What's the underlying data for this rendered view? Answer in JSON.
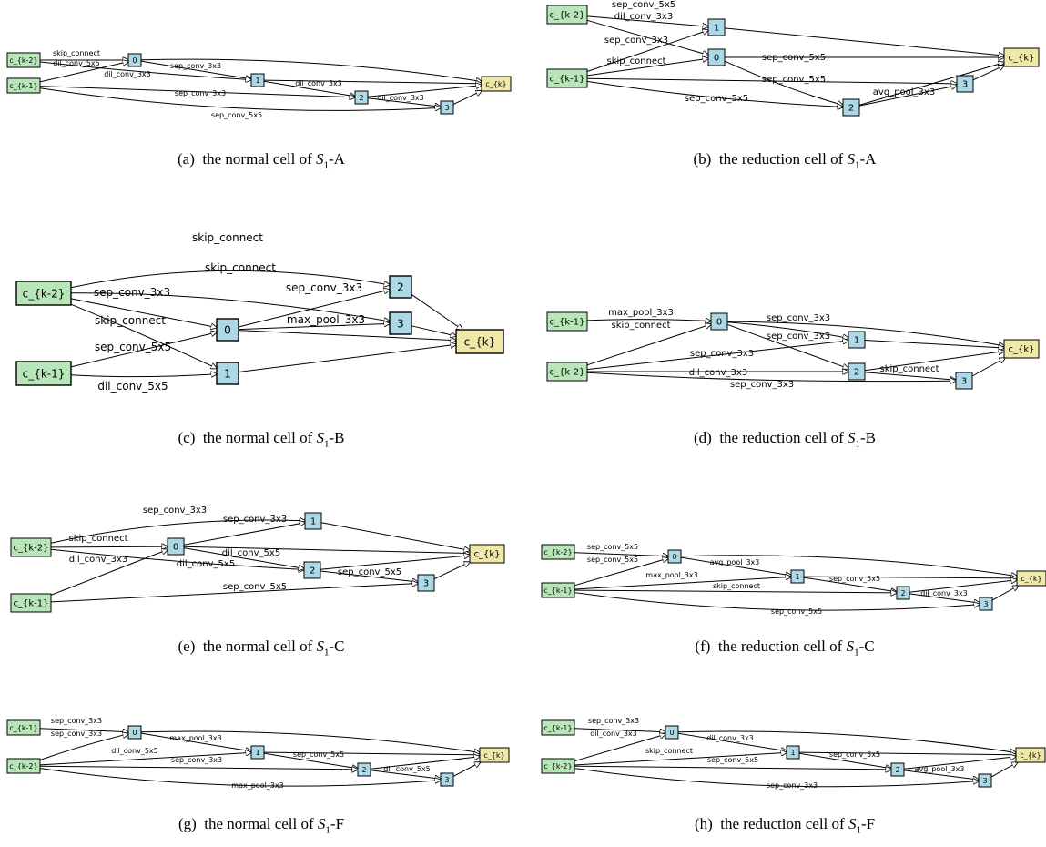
{
  "colors": {
    "input_node": "#b8e6b8",
    "intermediate_node": "#add8e6",
    "output_node": "#f0e8a8",
    "edge": "#000000"
  },
  "panels": [
    {
      "id": "a",
      "caption": {
        "label": "(a)",
        "text": "the normal cell of",
        "space": "S",
        "sub": "1",
        "suffix": "-A"
      },
      "nodes": [
        {
          "id": "c_{k-2}",
          "kind": "input"
        },
        {
          "id": "c_{k-1}",
          "kind": "input"
        },
        {
          "id": "0",
          "kind": "intermediate"
        },
        {
          "id": "1",
          "kind": "intermediate"
        },
        {
          "id": "2",
          "kind": "intermediate"
        },
        {
          "id": "3",
          "kind": "intermediate"
        },
        {
          "id": "c_{k}",
          "kind": "output"
        }
      ],
      "edges": [
        {
          "from": "c_{k-2}",
          "to": "0",
          "op": "skip_connect"
        },
        {
          "from": "c_{k-1}",
          "to": "0",
          "op": "dil_conv_5x5"
        },
        {
          "from": "0",
          "to": "1",
          "op": "sep_conv_3x3"
        },
        {
          "from": "c_{k-2}",
          "to": "1",
          "op": "dil_conv_3x3"
        },
        {
          "from": "1",
          "to": "2",
          "op": "dil_conv_3x3"
        },
        {
          "from": "c_{k-1}",
          "to": "2",
          "op": "sep_conv_3x3"
        },
        {
          "from": "2",
          "to": "3",
          "op": "dil_conv_3x3"
        },
        {
          "from": "c_{k-1}",
          "to": "3",
          "op": "sep_conv_5x5"
        },
        {
          "from": "0",
          "to": "c_{k}",
          "op": ""
        },
        {
          "from": "1",
          "to": "c_{k}",
          "op": ""
        },
        {
          "from": "2",
          "to": "c_{k}",
          "op": ""
        },
        {
          "from": "3",
          "to": "c_{k}",
          "op": ""
        }
      ]
    },
    {
      "id": "b",
      "caption": {
        "label": "(b)",
        "text": "the reduction cell of",
        "space": "S",
        "sub": "1",
        "suffix": "-A"
      },
      "nodes": [
        {
          "id": "c_{k-2}",
          "kind": "input"
        },
        {
          "id": "c_{k-1}",
          "kind": "input"
        },
        {
          "id": "0",
          "kind": "intermediate"
        },
        {
          "id": "1",
          "kind": "intermediate"
        },
        {
          "id": "2",
          "kind": "intermediate"
        },
        {
          "id": "3",
          "kind": "intermediate"
        },
        {
          "id": "c_{k}",
          "kind": "output"
        }
      ],
      "edges": [
        {
          "from": "c_{k-2}",
          "to": "1",
          "op": "sep_conv_5x5"
        },
        {
          "from": "c_{k-2}",
          "to": "0",
          "op": "dil_conv_3x3"
        },
        {
          "from": "c_{k-1}",
          "to": "1",
          "op": "sep_conv_3x3"
        },
        {
          "from": "c_{k-1}",
          "to": "0",
          "op": "skip_connect"
        },
        {
          "from": "0",
          "to": "2",
          "op": "sep_conv_5x5"
        },
        {
          "from": "c_{k-1}",
          "to": "3",
          "op": "sep_conv_5x5"
        },
        {
          "from": "c_{k-1}",
          "to": "2",
          "op": "sep_conv_5x5"
        },
        {
          "from": "2",
          "to": "3",
          "op": "avg_pool_3x3"
        },
        {
          "from": "0",
          "to": "c_{k}",
          "op": ""
        },
        {
          "from": "1",
          "to": "c_{k}",
          "op": ""
        },
        {
          "from": "2",
          "to": "c_{k}",
          "op": ""
        },
        {
          "from": "3",
          "to": "c_{k}",
          "op": ""
        }
      ]
    },
    {
      "id": "c",
      "caption": {
        "label": "(c)",
        "text": "the normal cell of",
        "space": "S",
        "sub": "1",
        "suffix": "-B"
      },
      "nodes": [
        {
          "id": "c_{k-2}",
          "kind": "input"
        },
        {
          "id": "c_{k-1}",
          "kind": "input"
        },
        {
          "id": "0",
          "kind": "intermediate"
        },
        {
          "id": "1",
          "kind": "intermediate"
        },
        {
          "id": "2",
          "kind": "intermediate"
        },
        {
          "id": "3",
          "kind": "intermediate"
        },
        {
          "id": "c_{k}",
          "kind": "output"
        }
      ],
      "edges": [
        {
          "from": "c_{k-2}",
          "to": "2",
          "op": "skip_connect"
        },
        {
          "from": "c_{k-2}",
          "to": "3",
          "op": "skip_connect"
        },
        {
          "from": "c_{k-2}",
          "to": "0",
          "op": "sep_conv_3x3"
        },
        {
          "from": "c_{k-2}",
          "to": "1",
          "op": "skip_connect"
        },
        {
          "from": "0",
          "to": "2",
          "op": "sep_conv_3x3"
        },
        {
          "from": "0",
          "to": "3",
          "op": "max_pool_3x3"
        },
        {
          "from": "c_{k-1}",
          "to": "0",
          "op": "sep_conv_5x5"
        },
        {
          "from": "c_{k-1}",
          "to": "1",
          "op": "dil_conv_5x5"
        },
        {
          "from": "0",
          "to": "c_{k}",
          "op": ""
        },
        {
          "from": "1",
          "to": "c_{k}",
          "op": ""
        },
        {
          "from": "2",
          "to": "c_{k}",
          "op": ""
        },
        {
          "from": "3",
          "to": "c_{k}",
          "op": ""
        }
      ]
    },
    {
      "id": "d",
      "caption": {
        "label": "(d)",
        "text": "the reduction cell of",
        "space": "S",
        "sub": "1",
        "suffix": "-B"
      },
      "nodes": [
        {
          "id": "c_{k-1}",
          "kind": "input"
        },
        {
          "id": "c_{k-2}",
          "kind": "input"
        },
        {
          "id": "0",
          "kind": "intermediate"
        },
        {
          "id": "1",
          "kind": "intermediate"
        },
        {
          "id": "2",
          "kind": "intermediate"
        },
        {
          "id": "3",
          "kind": "intermediate"
        },
        {
          "id": "c_{k}",
          "kind": "output"
        }
      ],
      "edges": [
        {
          "from": "c_{k-1}",
          "to": "0",
          "op": "max_pool_3x3"
        },
        {
          "from": "c_{k-2}",
          "to": "0",
          "op": "skip_connect"
        },
        {
          "from": "0",
          "to": "1",
          "op": "sep_conv_3x3"
        },
        {
          "from": "0",
          "to": "2",
          "op": "sep_conv_3x3"
        },
        {
          "from": "c_{k-2}",
          "to": "1",
          "op": "sep_conv_3x3"
        },
        {
          "from": "c_{k-2}",
          "to": "2",
          "op": "dil_conv_3x3"
        },
        {
          "from": "2",
          "to": "3",
          "op": "skip_connect"
        },
        {
          "from": "c_{k-2}",
          "to": "3",
          "op": "sep_conv_3x3"
        },
        {
          "from": "0",
          "to": "c_{k}",
          "op": ""
        },
        {
          "from": "1",
          "to": "c_{k}",
          "op": ""
        },
        {
          "from": "2",
          "to": "c_{k}",
          "op": ""
        },
        {
          "from": "3",
          "to": "c_{k}",
          "op": ""
        }
      ]
    },
    {
      "id": "e",
      "caption": {
        "label": "(e)",
        "text": "the normal cell of",
        "space": "S",
        "sub": "1",
        "suffix": "-C"
      },
      "nodes": [
        {
          "id": "c_{k-2}",
          "kind": "input"
        },
        {
          "id": "c_{k-1}",
          "kind": "input"
        },
        {
          "id": "0",
          "kind": "intermediate"
        },
        {
          "id": "1",
          "kind": "intermediate"
        },
        {
          "id": "2",
          "kind": "intermediate"
        },
        {
          "id": "3",
          "kind": "intermediate"
        },
        {
          "id": "c_{k}",
          "kind": "output"
        }
      ],
      "edges": [
        {
          "from": "c_{k-2}",
          "to": "1",
          "op": "sep_conv_3x3"
        },
        {
          "from": "0",
          "to": "1",
          "op": "sep_conv_3x3"
        },
        {
          "from": "c_{k-2}",
          "to": "0",
          "op": "skip_connect"
        },
        {
          "from": "c_{k-2}",
          "to": "2",
          "op": "dil_conv_3x3"
        },
        {
          "from": "0",
          "to": "2",
          "op": "dil_conv_5x5"
        },
        {
          "from": "c_{k-1}",
          "to": "0",
          "op": "dil_conv_5x5"
        },
        {
          "from": "2",
          "to": "3",
          "op": "sep_conv_5x5"
        },
        {
          "from": "c_{k-1}",
          "to": "3",
          "op": "sep_conv_5x5"
        },
        {
          "from": "0",
          "to": "c_{k}",
          "op": ""
        },
        {
          "from": "1",
          "to": "c_{k}",
          "op": ""
        },
        {
          "from": "2",
          "to": "c_{k}",
          "op": ""
        },
        {
          "from": "3",
          "to": "c_{k}",
          "op": ""
        }
      ]
    },
    {
      "id": "f",
      "caption": {
        "label": "(f)",
        "text": "the reduction cell of",
        "space": "S",
        "sub": "1",
        "suffix": "-C"
      },
      "nodes": [
        {
          "id": "c_{k-2}",
          "kind": "input"
        },
        {
          "id": "c_{k-1}",
          "kind": "input"
        },
        {
          "id": "0",
          "kind": "intermediate"
        },
        {
          "id": "1",
          "kind": "intermediate"
        },
        {
          "id": "2",
          "kind": "intermediate"
        },
        {
          "id": "3",
          "kind": "intermediate"
        },
        {
          "id": "c_{k}",
          "kind": "output"
        }
      ],
      "edges": [
        {
          "from": "c_{k-2}",
          "to": "0",
          "op": "sep_conv_5x5"
        },
        {
          "from": "c_{k-1}",
          "to": "0",
          "op": "sep_conv_5x5"
        },
        {
          "from": "0",
          "to": "1",
          "op": "avg_pool_3x3"
        },
        {
          "from": "c_{k-1}",
          "to": "1",
          "op": "max_pool_3x3"
        },
        {
          "from": "1",
          "to": "2",
          "op": "sep_conv_5x5"
        },
        {
          "from": "c_{k-1}",
          "to": "2",
          "op": "skip_connect"
        },
        {
          "from": "2",
          "to": "3",
          "op": "dil_conv_3x3"
        },
        {
          "from": "c_{k-1}",
          "to": "3",
          "op": "sep_conv_5x5"
        },
        {
          "from": "0",
          "to": "c_{k}",
          "op": ""
        },
        {
          "from": "1",
          "to": "c_{k}",
          "op": ""
        },
        {
          "from": "2",
          "to": "c_{k}",
          "op": ""
        },
        {
          "from": "3",
          "to": "c_{k}",
          "op": ""
        }
      ]
    },
    {
      "id": "g",
      "caption": {
        "label": "(g)",
        "text": "the normal cell of",
        "space": "S",
        "sub": "1",
        "suffix": "-F"
      },
      "nodes": [
        {
          "id": "c_{k-1}",
          "kind": "input"
        },
        {
          "id": "c_{k-2}",
          "kind": "input"
        },
        {
          "id": "0",
          "kind": "intermediate"
        },
        {
          "id": "1",
          "kind": "intermediate"
        },
        {
          "id": "2",
          "kind": "intermediate"
        },
        {
          "id": "3",
          "kind": "intermediate"
        },
        {
          "id": "c_{k}",
          "kind": "output"
        }
      ],
      "edges": [
        {
          "from": "c_{k-1}",
          "to": "0",
          "op": "sep_conv_3x3"
        },
        {
          "from": "c_{k-2}",
          "to": "0",
          "op": "sep_conv_3x3"
        },
        {
          "from": "0",
          "to": "1",
          "op": "max_pool_3x3"
        },
        {
          "from": "c_{k-2}",
          "to": "1",
          "op": "dil_conv_5x5"
        },
        {
          "from": "1",
          "to": "2",
          "op": "sep_conv_5x5"
        },
        {
          "from": "c_{k-2}",
          "to": "2",
          "op": "sep_conv_3x3"
        },
        {
          "from": "2",
          "to": "3",
          "op": "dil_conv_5x5"
        },
        {
          "from": "c_{k-2}",
          "to": "3",
          "op": "max_pool_3x3"
        },
        {
          "from": "0",
          "to": "c_{k}",
          "op": ""
        },
        {
          "from": "1",
          "to": "c_{k}",
          "op": ""
        },
        {
          "from": "2",
          "to": "c_{k}",
          "op": ""
        },
        {
          "from": "3",
          "to": "c_{k}",
          "op": ""
        }
      ]
    },
    {
      "id": "h",
      "caption": {
        "label": "(h)",
        "text": "the reduction cell of",
        "space": "S",
        "sub": "1",
        "suffix": "-F"
      },
      "nodes": [
        {
          "id": "c_{k-1}",
          "kind": "input"
        },
        {
          "id": "c_{k-2}",
          "kind": "input"
        },
        {
          "id": "0",
          "kind": "intermediate"
        },
        {
          "id": "1",
          "kind": "intermediate"
        },
        {
          "id": "2",
          "kind": "intermediate"
        },
        {
          "id": "3",
          "kind": "intermediate"
        },
        {
          "id": "c_{k}",
          "kind": "output"
        }
      ],
      "edges": [
        {
          "from": "c_{k-1}",
          "to": "0",
          "op": "sep_conv_3x3"
        },
        {
          "from": "c_{k-2}",
          "to": "0",
          "op": "dil_conv_3x3"
        },
        {
          "from": "0",
          "to": "1",
          "op": "dil_conv_3x3"
        },
        {
          "from": "c_{k-2}",
          "to": "1",
          "op": "skip_connect"
        },
        {
          "from": "1",
          "to": "2",
          "op": "sep_conv_5x5"
        },
        {
          "from": "c_{k-2}",
          "to": "2",
          "op": "sep_conv_5x5"
        },
        {
          "from": "2",
          "to": "3",
          "op": "avg_pool_3x3"
        },
        {
          "from": "c_{k-2}",
          "to": "3",
          "op": "sep_conv_3x3"
        },
        {
          "from": "0",
          "to": "c_{k}",
          "op": ""
        },
        {
          "from": "1",
          "to": "c_{k}",
          "op": ""
        },
        {
          "from": "2",
          "to": "c_{k}",
          "op": ""
        },
        {
          "from": "3",
          "to": "c_{k}",
          "op": ""
        }
      ]
    }
  ]
}
